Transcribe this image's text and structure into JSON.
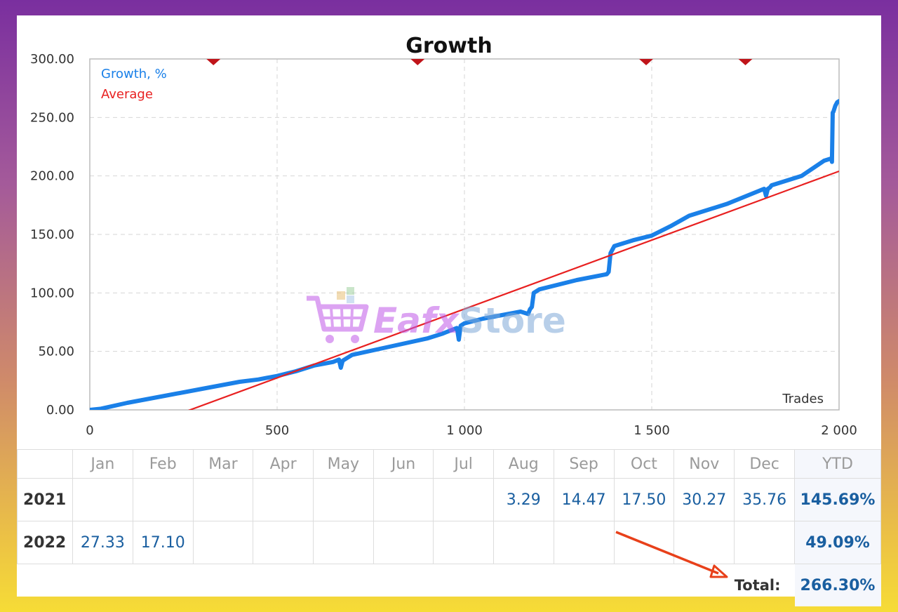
{
  "chart_data": {
    "type": "line",
    "title": "Growth",
    "xlabel": "Trades",
    "ylabel": "",
    "xlim": [
      0,
      2000
    ],
    "ylim": [
      0,
      300
    ],
    "x_ticks": [
      "0",
      "500",
      "1 000",
      "1 500",
      "2 000"
    ],
    "y_ticks": [
      "0.00",
      "50.00",
      "100.00",
      "150.00",
      "200.00",
      "250.00",
      "300.00"
    ],
    "grid": true,
    "legend_position": "top-left",
    "series": [
      {
        "name": "Growth, %",
        "color": "#1a80e8",
        "x": [
          0,
          30,
          100,
          200,
          300,
          400,
          450,
          500,
          550,
          600,
          650,
          665,
          670,
          675,
          690,
          700,
          800,
          900,
          940,
          980,
          985,
          990,
          1000,
          1050,
          1100,
          1150,
          1170,
          1175,
          1180,
          1185,
          1190,
          1200,
          1300,
          1380,
          1385,
          1390,
          1395,
          1400,
          1450,
          1500,
          1550,
          1600,
          1700,
          1800,
          1805,
          1810,
          1815,
          1820,
          1900,
          1960,
          1980,
          1981,
          1983,
          1985,
          1990,
          1995,
          2000
        ],
        "y": [
          0,
          1,
          6,
          12,
          18,
          24,
          26,
          29,
          33,
          38,
          41,
          43,
          36,
          42,
          45,
          47,
          54,
          61,
          65,
          70,
          60,
          72,
          74,
          78,
          81,
          84,
          82,
          86,
          88,
          100,
          101,
          103,
          111,
          116,
          118,
          134,
          137,
          140,
          145,
          149,
          157,
          166,
          176,
          189,
          183,
          189,
          190,
          192,
          200,
          213,
          215,
          212,
          254,
          255,
          260,
          263,
          264
        ]
      },
      {
        "name": "Average",
        "color": "#e82020",
        "x": [
          200,
          2000
        ],
        "y": [
          -8,
          204
        ]
      }
    ],
    "markers_top": [
      330,
      875,
      1485,
      1750
    ]
  },
  "table": {
    "months": [
      "Jan",
      "Feb",
      "Mar",
      "Apr",
      "May",
      "Jun",
      "Jul",
      "Aug",
      "Sep",
      "Oct",
      "Nov",
      "Dec"
    ],
    "ytd_header": "YTD",
    "rows": [
      {
        "year": "2021",
        "values": [
          "",
          "",
          "",
          "",
          "",
          "",
          "",
          "3.29",
          "14.47",
          "17.50",
          "30.27",
          "35.76"
        ],
        "ytd": "145.69%"
      },
      {
        "year": "2022",
        "values": [
          "27.33",
          "17.10",
          "",
          "",
          "",
          "",
          "",
          "",
          "",
          "",
          "",
          ""
        ],
        "ytd": "49.09%"
      }
    ],
    "total_label": "Total:",
    "total_value": "266.30%"
  },
  "watermark": {
    "brand_part1": "Eafx",
    "brand_part2": "Store"
  }
}
